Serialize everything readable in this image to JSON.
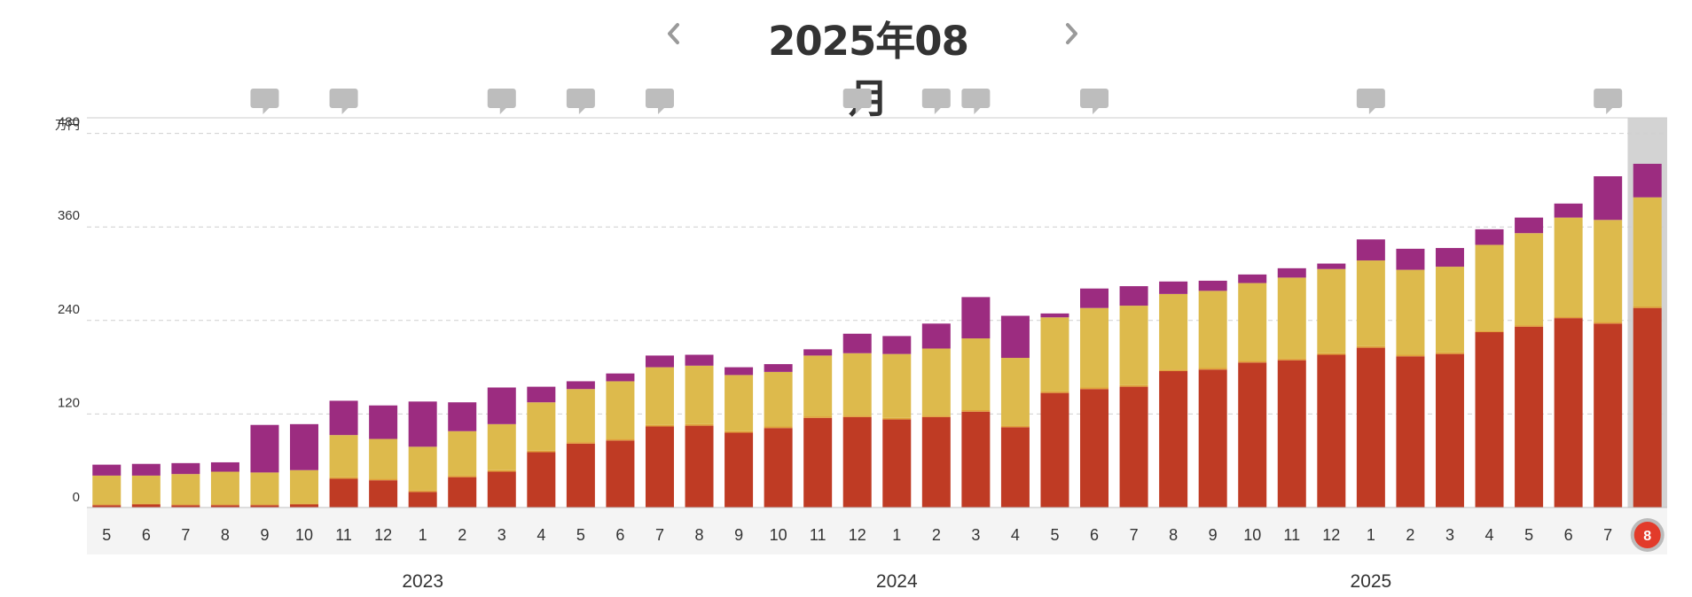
{
  "header": {
    "title": "2025年08月",
    "prev_icon": "chevron-left-icon",
    "next_icon": "chevron-right-icon"
  },
  "chart_data": {
    "type": "bar",
    "stacked": true,
    "unit_label": "万円",
    "ylim": [
      0,
      500
    ],
    "yticks": [
      0,
      120,
      240,
      360,
      480
    ],
    "grid": true,
    "legend": "none",
    "categories": [
      "5",
      "6",
      "7",
      "8",
      "9",
      "10",
      "11",
      "12",
      "1",
      "2",
      "3",
      "4",
      "5",
      "6",
      "7",
      "8",
      "9",
      "10",
      "11",
      "12",
      "1",
      "2",
      "3",
      "4",
      "5",
      "6",
      "7",
      "8",
      "9",
      "10",
      "11",
      "12",
      "1",
      "2",
      "3",
      "4",
      "5",
      "6",
      "7",
      "8"
    ],
    "years": [
      {
        "label": "2023",
        "center_index": 8
      },
      {
        "label": "2024",
        "center_index": 20
      },
      {
        "label": "2025",
        "center_index": 32
      }
    ],
    "selected_index": 39,
    "comment_indices": [
      4,
      6,
      10,
      12,
      14,
      19,
      21,
      22,
      25,
      32,
      38
    ],
    "colors": [
      "#bf3b24",
      "#e0a23a",
      "#ddba4c",
      "#9c2c80"
    ],
    "series": [
      {
        "values": [
          3,
          4,
          3,
          3,
          3,
          4,
          37,
          35,
          20,
          39,
          46,
          71,
          82,
          86,
          104,
          105,
          96,
          102,
          115,
          116,
          113,
          116,
          123,
          103,
          147,
          152,
          155,
          175,
          177,
          186,
          189,
          196,
          205,
          194,
          197,
          225,
          232,
          243,
          236,
          256
        ]
      },
      {
        "values": [
          1,
          1,
          1,
          1,
          1,
          1,
          2,
          2,
          2,
          2,
          2,
          2,
          2,
          2,
          2,
          2,
          2,
          2,
          2,
          2,
          2,
          2,
          2,
          2,
          2,
          2,
          2,
          2,
          2,
          2,
          2,
          2,
          2,
          2,
          2,
          2,
          2,
          2,
          2,
          2
        ]
      },
      {
        "values": [
          37,
          36,
          39,
          42,
          41,
          43,
          54,
          51,
          56,
          57,
          59,
          62,
          68,
          74,
          74,
          75,
          72,
          70,
          78,
          80,
          82,
          86,
          92,
          87,
          95,
          102,
          102,
          97,
          99,
          100,
          104,
          108,
          110,
          109,
          110,
          110,
          118,
          127,
          131,
          140
        ]
      },
      {
        "values": [
          14,
          15,
          14,
          12,
          61,
          59,
          44,
          43,
          58,
          37,
          47,
          20,
          10,
          10,
          15,
          14,
          10,
          10,
          8,
          25,
          23,
          32,
          53,
          54,
          5,
          25,
          25,
          16,
          13,
          11,
          12,
          7,
          27,
          27,
          24,
          20,
          20,
          18,
          56,
          43
        ]
      }
    ]
  }
}
